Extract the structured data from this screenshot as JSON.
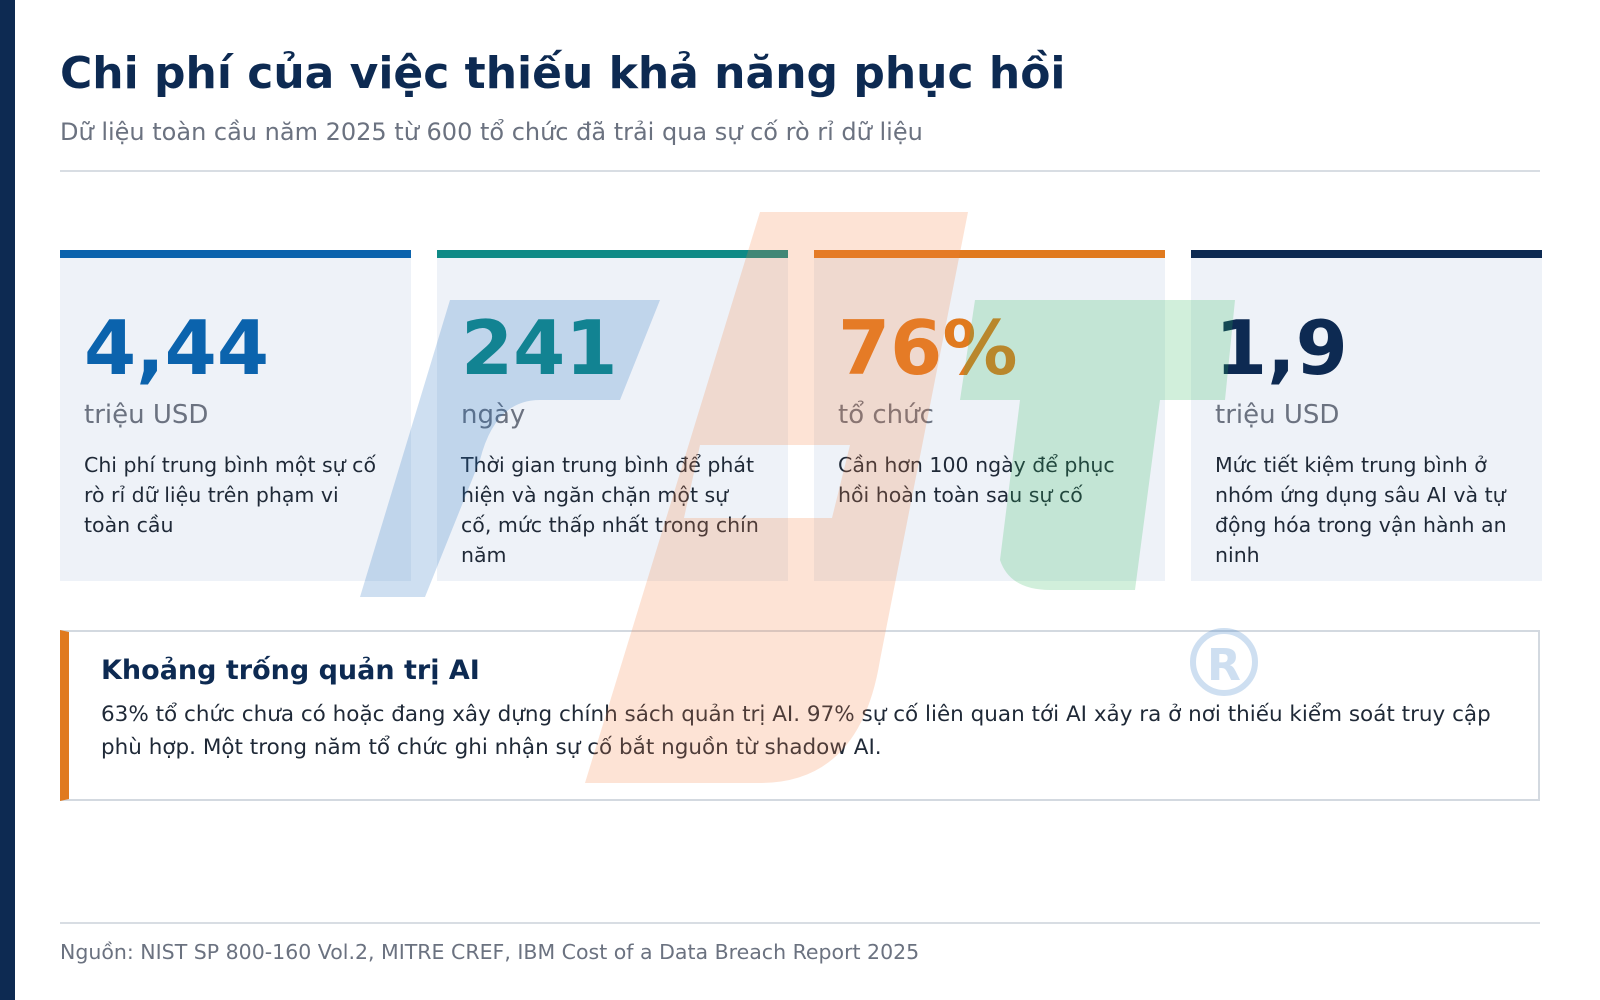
{
  "header": {
    "title": "Chi phí của việc thiếu khả năng phục hồi",
    "subtitle": "Dữ liệu toàn cầu năm 2025 từ 600 tổ chức đã trải qua sự cố rò rỉ dữ liệu"
  },
  "cards": [
    {
      "value": "4,44",
      "unit": "triệu USD",
      "description": "Chi phí trung bình một sự cố rò rỉ dữ liệu trên phạm vi toàn cầu",
      "accent_color": "#0b63ad"
    },
    {
      "value": "241",
      "unit": "ngày",
      "description": "Thời gian trung bình để phát hiện và ngăn chặn một sự cố, mức thấp nhất trong chín năm",
      "accent_color": "#0f8a86"
    },
    {
      "value": "76%",
      "unit": "tổ chức",
      "description": "Cần hơn 100 ngày để phục hồi hoàn toàn sau sự cố",
      "accent_color": "#e07a1f"
    },
    {
      "value": "1,9",
      "unit": "triệu USD",
      "description": "Mức tiết kiệm trung bình ở nhóm ứng dụng sâu AI và tự động hóa trong vận hành an ninh",
      "accent_color": "#0d2a52"
    }
  ],
  "callout": {
    "title": "Khoảng trống quản trị AI",
    "body": "63% tổ chức chưa có hoặc đang xây dựng chính sách quản trị AI. 97% sự cố liên quan tới AI xảy ra ở nơi thiếu kiểm soát truy cập phù hợp. Một trong năm tổ chức ghi nhận sự cố bắt nguồn từ shadow AI.",
    "accent_color": "#e07a1f"
  },
  "footer": {
    "source": "Nguồn: NIST SP 800-160 Vol.2, MITRE CREF, IBM Cost of a Data Breach Report 2025"
  },
  "watermark": {
    "icon": "fpt-logo-watermark",
    "colors": [
      "#1f6fbf",
      "#f4813f",
      "#2fb45a"
    ]
  }
}
